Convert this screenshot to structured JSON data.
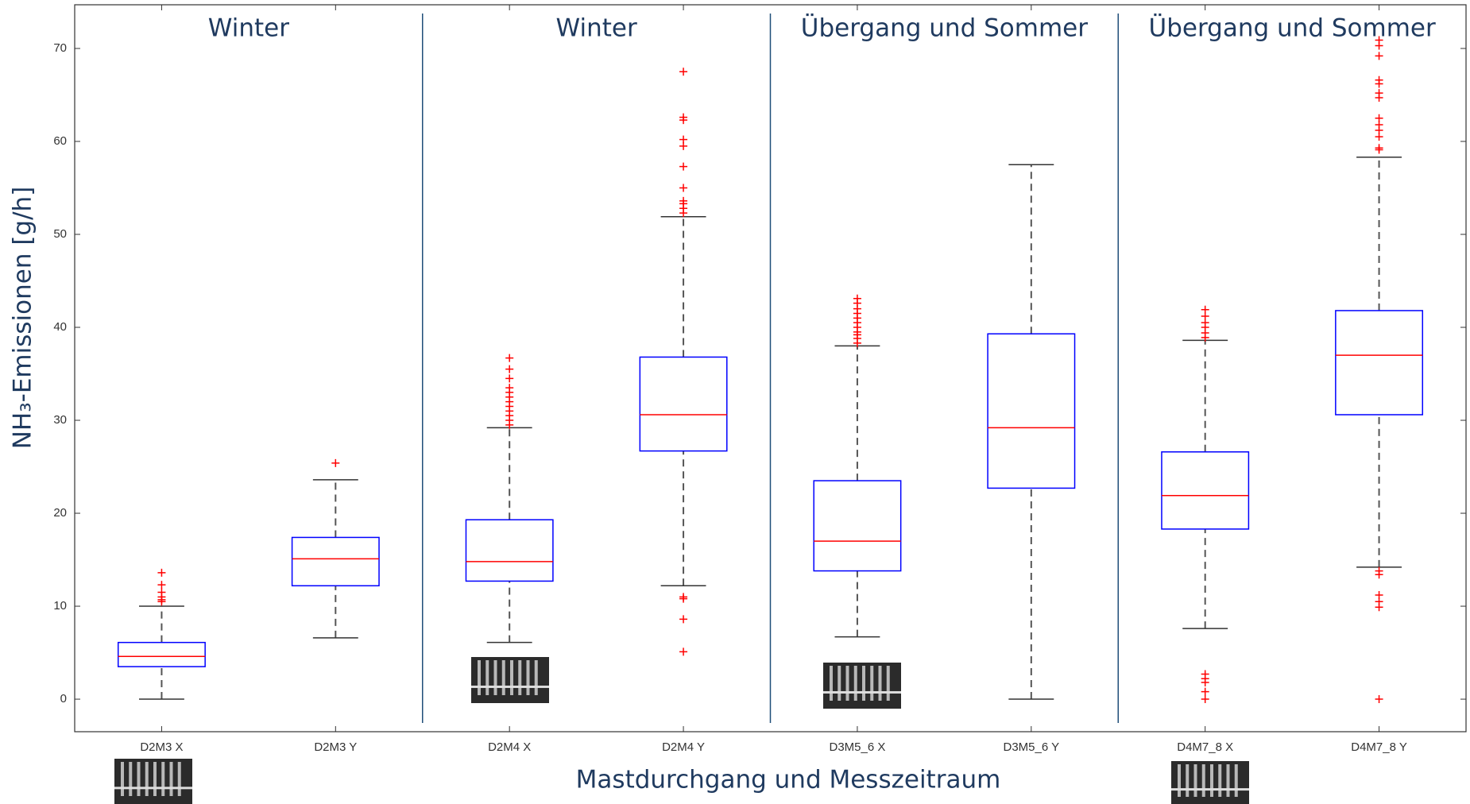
{
  "chart_data": {
    "type": "box",
    "ylabel": "NH₃-Emissionen [g/h]",
    "xlabel": "Mastdurchgang und Messzeitraum",
    "categories": [
      "D2M3 X",
      "D2M3 Y",
      "D2M4 X",
      "D2M4 Y",
      "D3M5_6 X",
      "D3M5_6 Y",
      "D4M7_8 X",
      "D4M7_8 Y"
    ],
    "annotations": [
      "Winter",
      "Winter",
      "Übergang und Sommer",
      "Übergang und Sommer"
    ],
    "boxes": [
      {
        "whislo": 0,
        "q1": 3.5,
        "med": 4.6,
        "q3": 6.1,
        "whishi": 10.0,
        "fliers": [
          10.5,
          10.7,
          11.0,
          11.5,
          12.3,
          13.6
        ]
      },
      {
        "whislo": 6.6,
        "q1": 12.2,
        "med": 15.1,
        "q3": 17.4,
        "whishi": 23.6,
        "fliers": [
          25.4
        ]
      },
      {
        "whislo": 6.1,
        "q1": 12.7,
        "med": 14.8,
        "q3": 19.3,
        "whishi": 29.2,
        "fliers": [
          29.5,
          30.0,
          30.5,
          31.0,
          31.5,
          32.0,
          32.5,
          33.0,
          33.5,
          34.5,
          35.5,
          36.7
        ]
      },
      {
        "whislo": 12.2,
        "q1": 26.7,
        "med": 30.6,
        "q3": 36.8,
        "whishi": 51.9,
        "fliers": [
          5.1,
          8.6,
          10.8,
          11.0,
          52.3,
          52.8,
          53.3,
          53.6,
          55.0,
          57.3,
          59.5,
          60.2,
          62.3,
          62.6,
          67.5
        ]
      },
      {
        "whislo": 6.7,
        "q1": 13.8,
        "med": 17.0,
        "q3": 23.5,
        "whishi": 38.0,
        "fliers": [
          38.3,
          38.8,
          39.2,
          39.5,
          40.0,
          40.5,
          41.0,
          41.5,
          42.0,
          42.6,
          43.1
        ]
      },
      {
        "whislo": 0,
        "q1": 22.7,
        "med": 29.2,
        "q3": 39.3,
        "whishi": 57.5,
        "fliers": []
      },
      {
        "whislo": 7.6,
        "q1": 18.3,
        "med": 21.9,
        "q3": 26.6,
        "whishi": 38.6,
        "fliers": [
          0,
          0.8,
          1.8,
          2.2,
          2.7,
          38.9,
          39.4,
          40.0,
          40.5,
          41.2,
          41.9
        ]
      },
      {
        "whislo": 14.2,
        "q1": 30.6,
        "med": 37.0,
        "q3": 41.8,
        "whishi": 58.3,
        "fliers": [
          0,
          9.9,
          10.5,
          11.2,
          13.4,
          13.8,
          59.1,
          59.3,
          60.5,
          61.2,
          61.8,
          62.5,
          64.7,
          65.2,
          66.2,
          66.6,
          69.2,
          70.3,
          70.9
        ]
      }
    ],
    "ylim": [
      -3.5,
      74.7
    ],
    "yticks": [
      0,
      10,
      20,
      30,
      40,
      50,
      60,
      70
    ],
    "box_color": "#0000ff",
    "median_color": "#ff0000",
    "whisker_color": "#555555",
    "flier_color": "#ff0000"
  }
}
